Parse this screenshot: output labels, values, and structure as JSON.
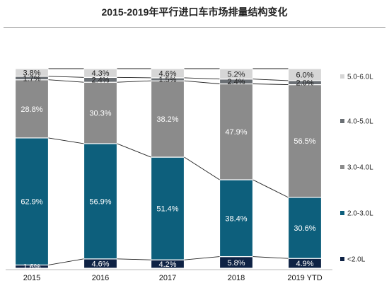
{
  "chart_data": {
    "type": "bar",
    "stacked": true,
    "percent": true,
    "title": "2015-2019年平行进口车市场排量结构变化",
    "categories": [
      "2015",
      "2016",
      "2017",
      "2018",
      "2019 YTD"
    ],
    "series": [
      {
        "name": "<2.0L",
        "values": [
          1.6,
          4.6,
          4.2,
          5.8,
          4.9
        ],
        "labels": [
          "1.6%",
          "4.6%",
          "4.2%",
          "5.8%",
          "4.9%"
        ]
      },
      {
        "name": "2.0-3.0L",
        "values": [
          62.9,
          56.9,
          51.4,
          38.4,
          30.6
        ],
        "labels": [
          "62.9%",
          "56.9%",
          "51.4%",
          "38.4%",
          "30.6%"
        ]
      },
      {
        "name": "3.0-4.0L",
        "values": [
          28.8,
          30.3,
          38.2,
          47.9,
          56.5
        ],
        "labels": [
          "28.8%",
          "30.3%",
          "38.2%",
          "47.9%",
          "56.5%"
        ]
      },
      {
        "name": "4.0-5.0L",
        "values": [
          1.7,
          2.4,
          1.5,
          2.4,
          2.0
        ],
        "labels": [
          "1.7%",
          "2.4%",
          "1.5%",
          "2.4%",
          "2.0%"
        ]
      },
      {
        "name": "5.0-6.0L",
        "values": [
          3.8,
          4.3,
          4.6,
          5.2,
          6.0
        ],
        "labels": [
          "3.8%",
          "4.3%",
          "4.6%",
          "5.2%",
          "6.0%"
        ]
      }
    ],
    "colors": [
      "#0e2244",
      "#0d5f7c",
      "#8b8b8b",
      "#6a6f74",
      "#d6d6d6"
    ],
    "label_colors": [
      "#ffffff",
      "#ffffff",
      "#ffffff",
      "#222222",
      "#222222"
    ],
    "legend_position": "right",
    "grid": false,
    "connector_lines": true,
    "ylim": [
      0,
      100
    ]
  }
}
